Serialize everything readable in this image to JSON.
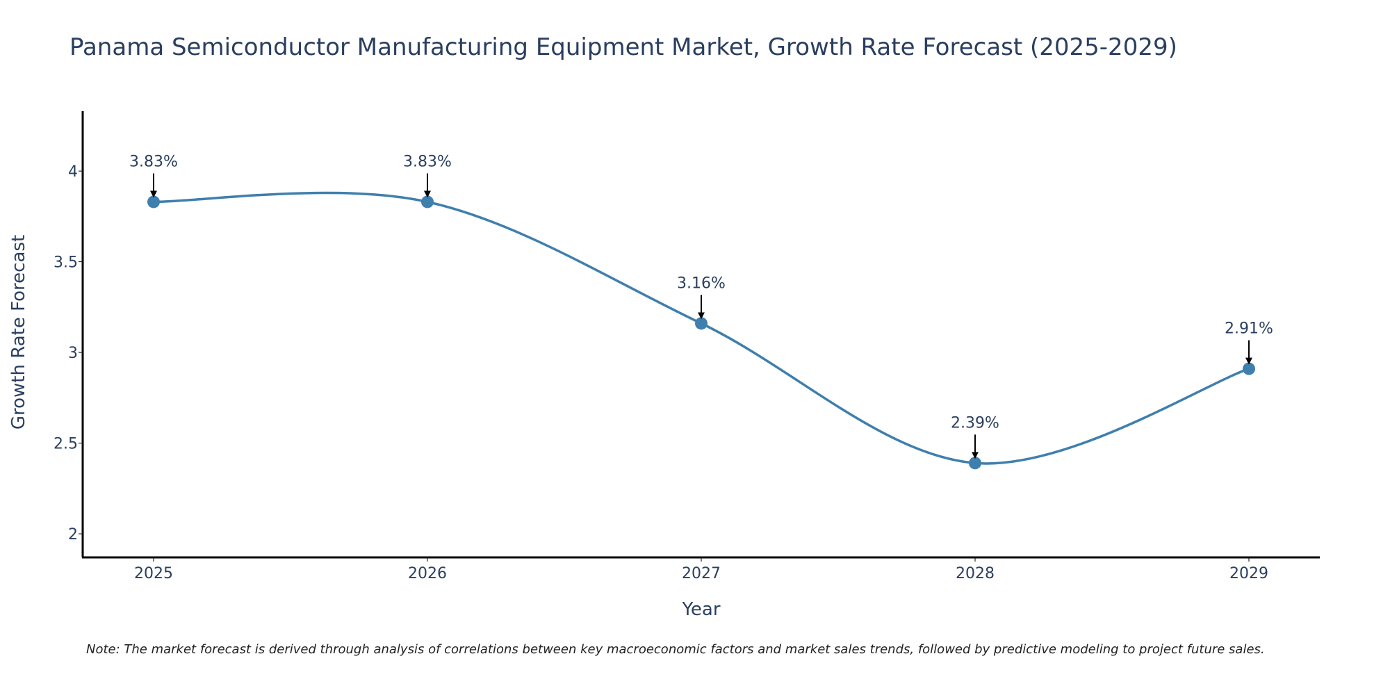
{
  "chart_data": {
    "type": "line",
    "title": "Panama Semiconductor Manufacturing Equipment Market, Growth Rate Forecast (2025-2029)",
    "xlabel": "Year",
    "ylabel": "Growth Rate Forecast",
    "categories": [
      "2025",
      "2026",
      "2027",
      "2028",
      "2029"
    ],
    "series": [
      {
        "name": "Growth Rate Forecast",
        "values": [
          3.83,
          3.83,
          3.16,
          2.39,
          2.91
        ],
        "color": "#3f7fad"
      }
    ],
    "data_labels": [
      "3.83%",
      "3.83%",
      "3.16%",
      "2.39%",
      "2.91%"
    ],
    "yticks": [
      2,
      2.5,
      3,
      3.5,
      4
    ],
    "ytick_labels": [
      "2",
      "2.5",
      "3",
      "3.5",
      "4"
    ],
    "ylim": [
      1.87,
      4.33
    ],
    "grid": false,
    "line_shape": "spline",
    "note": "Note: The market forecast is derived through analysis of correlations between key macroeconomic factors and market sales trends, followed by predictive modeling to project future sales."
  }
}
